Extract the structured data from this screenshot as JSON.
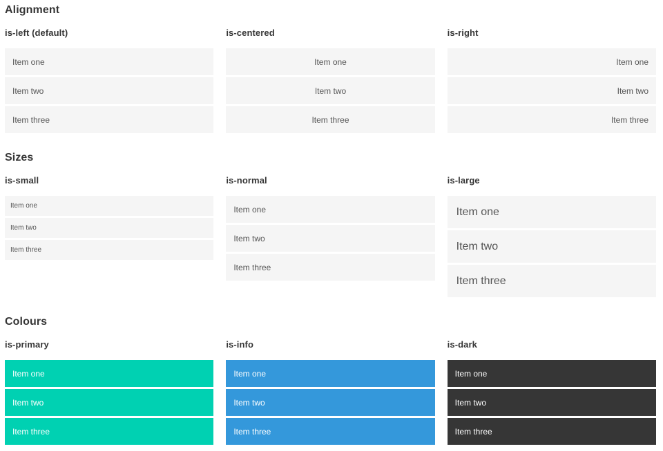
{
  "colors": {
    "primary": "#00d1b2",
    "info": "#3498db",
    "dark": "#363636",
    "item_background": "#f5f5f5",
    "item_text": "#555555",
    "heading_text": "#363636",
    "colored_item_text": "#ffffff"
  },
  "sections": [
    {
      "title": "Alignment",
      "columns": [
        {
          "heading": "is-left (default)",
          "variant": "left",
          "items": [
            "Item one",
            "Item two",
            "Item three"
          ]
        },
        {
          "heading": "is-centered",
          "variant": "centered",
          "items": [
            "Item one",
            "Item two",
            "Item three"
          ]
        },
        {
          "heading": "is-right",
          "variant": "right",
          "items": [
            "Item one",
            "Item two",
            "Item three"
          ]
        }
      ]
    },
    {
      "title": "Sizes",
      "columns": [
        {
          "heading": "is-small",
          "variant": "small",
          "items": [
            "Item one",
            "Item two",
            "Item three"
          ]
        },
        {
          "heading": "is-normal",
          "variant": "normal",
          "items": [
            "Item one",
            "Item two",
            "Item three"
          ]
        },
        {
          "heading": "is-large",
          "variant": "large",
          "items": [
            "Item one",
            "Item two",
            "Item three"
          ]
        }
      ]
    },
    {
      "title": "Colours",
      "columns": [
        {
          "heading": "is-primary",
          "variant": "primary",
          "items": [
            "Item one",
            "Item two",
            "Item three"
          ]
        },
        {
          "heading": "is-info",
          "variant": "info",
          "items": [
            "Item one",
            "Item two",
            "Item three"
          ]
        },
        {
          "heading": "is-dark",
          "variant": "dark",
          "items": [
            "Item one",
            "Item two",
            "Item three"
          ]
        }
      ]
    }
  ]
}
